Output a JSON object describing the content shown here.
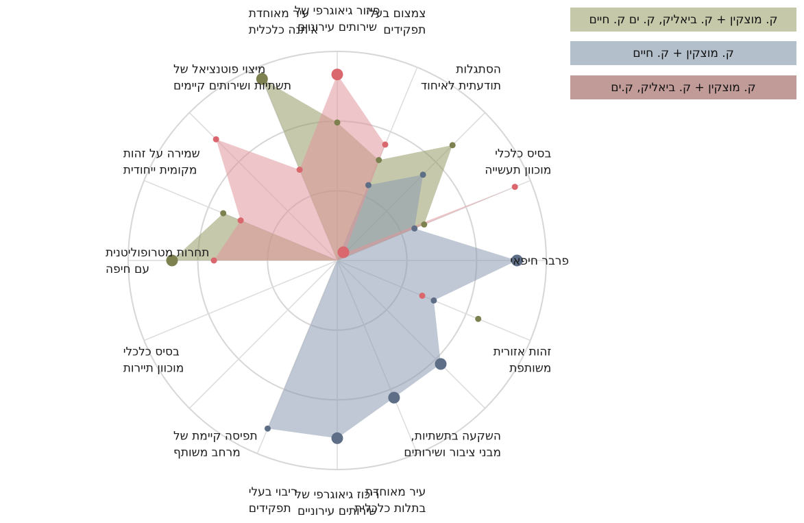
{
  "legend": [
    {
      "label": "ק. מוצקין + ק. ביאליק, ק. ים ק. חיים",
      "color": "#c6c8aa"
    },
    {
      "label": "ק. מוצקין + ק. חיים",
      "color": "#b3bfcb"
    },
    {
      "label": "ק. מוצקין + ק. ביאליק, ק.ים",
      "color": "#c09b98"
    }
  ],
  "chart_data": {
    "type": "radar",
    "title": "",
    "axes": [
      [
        "פיזור גיאוגרפי של",
        "שירותים עירוניים"
      ],
      [
        "צמצום בעלי",
        "תפקידים"
      ],
      [
        "הסתגלות",
        "תודעתית לאיחוד"
      ],
      [
        "בסיס כלכלי",
        "מוכוון תעשייה"
      ],
      [
        "פרבר חיפאי"
      ],
      [
        "זהות אזורית",
        "משותפת"
      ],
      [
        "השקעה בתשתיות,",
        "מבני ציבור ושירותים"
      ],
      [
        "עיר מאוחדת",
        "בתלות כלכלית"
      ],
      [
        "ריכוז גיאוגרפי של",
        "שירותים עירוניים"
      ],
      [
        "ריבוי בעלי",
        "תפקידים"
      ],
      [
        "תפיסה קיימת של",
        "מרחב משותף"
      ],
      [
        "בסיס כלכלי",
        "מוכוון תיירות"
      ],
      [
        "תחרות מטרופוליטנית",
        "עם חיפה"
      ],
      [
        "שמירה על זהות",
        "מקומית ייחודית"
      ],
      [
        "מיצוי פוטנציאל של",
        "תשתיות ושירותים קיימים"
      ],
      [
        "עיר מאוחדת",
        "איתנה כלכלית"
      ]
    ],
    "rmax": 1,
    "rings": 3,
    "series": [
      {
        "name": "ק. מוצקין + ק. ביאליק, ק. ים ק. חיים",
        "color": "#7d8150",
        "fill": "#969a66",
        "fill_opacity": 0.55,
        "values": [
          0.66,
          0.52,
          0.78,
          0.45,
          0,
          0.73,
          0,
          0,
          0,
          0,
          0,
          0,
          0.79,
          0.59,
          0,
          0.94
        ],
        "marker_sizes": [
          4.5,
          4.5,
          4.5,
          4.5,
          4.5,
          4.5,
          4.5,
          4.5,
          4.5,
          4.5,
          4.5,
          4.5,
          8.5,
          4.5,
          4.5,
          8.5
        ]
      },
      {
        "name": "ק. מוצקין + ק. חיים",
        "color": "#5d6e86",
        "fill": "#8a9bb0",
        "fill_opacity": 0.55,
        "values": [
          0,
          0.39,
          0.58,
          0.4,
          0.86,
          0.5,
          0.7,
          0.71,
          0.85,
          0.87,
          0,
          0,
          0,
          0,
          0,
          0
        ],
        "marker_sizes": [
          4.5,
          4.5,
          4.5,
          4.5,
          8.5,
          4.5,
          8.5,
          8.5,
          8.5,
          4.5,
          4.5,
          4.5,
          4.5,
          4.5,
          4.5,
          4.5
        ]
      },
      {
        "name": "ק. מוצקין + ק. ביאליק, ק.ים",
        "color": "#d9676d",
        "fill": "#e0959b",
        "fill_opacity": 0.55,
        "values": [
          0.89,
          0.6,
          0.05,
          0.92,
          0,
          0.44,
          0,
          0,
          0,
          0,
          0,
          0,
          0.59,
          0.5,
          0.82,
          0.47
        ],
        "marker_sizes": [
          8.5,
          4.5,
          4.5,
          4.5,
          4.5,
          4.5,
          4.5,
          4.5,
          4.5,
          4.5,
          4.5,
          4.5,
          4.5,
          4.5,
          4.5,
          4.5
        ]
      }
    ],
    "center_marker": {
      "series_index": 2,
      "size": 8.5
    },
    "grid": true,
    "legend_position": "top-right"
  }
}
